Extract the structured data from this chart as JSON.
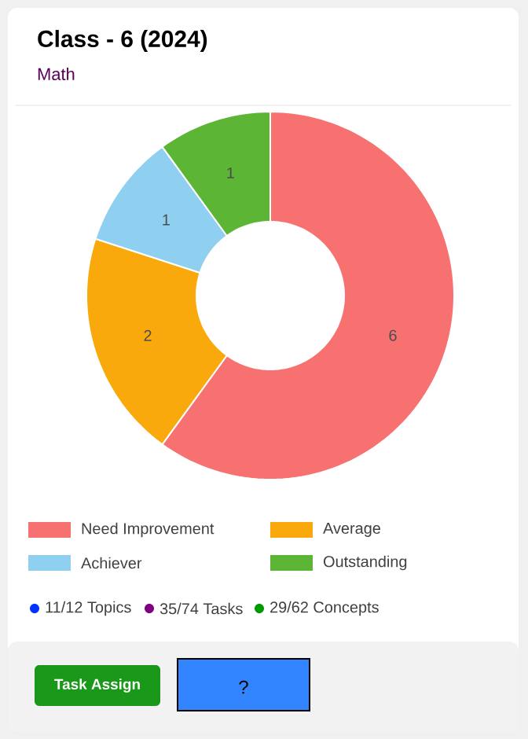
{
  "chart_data": {
    "type": "donut",
    "title": "Class - 6 (2024)",
    "subtitle": "Math",
    "categories": [
      "Need Improvement",
      "Average",
      "Achiever",
      "Outstanding"
    ],
    "values": [
      6,
      2,
      1,
      1
    ],
    "colors": [
      "#f87171",
      "#f9a90c",
      "#8fd0f0",
      "#5db536"
    ],
    "data_labels": true,
    "legend": "bottom",
    "annotations": [
      "11/12 Topics",
      "35/74 Tasks",
      "29/62 Concepts",
      "Task Assign",
      "?"
    ]
  }
}
